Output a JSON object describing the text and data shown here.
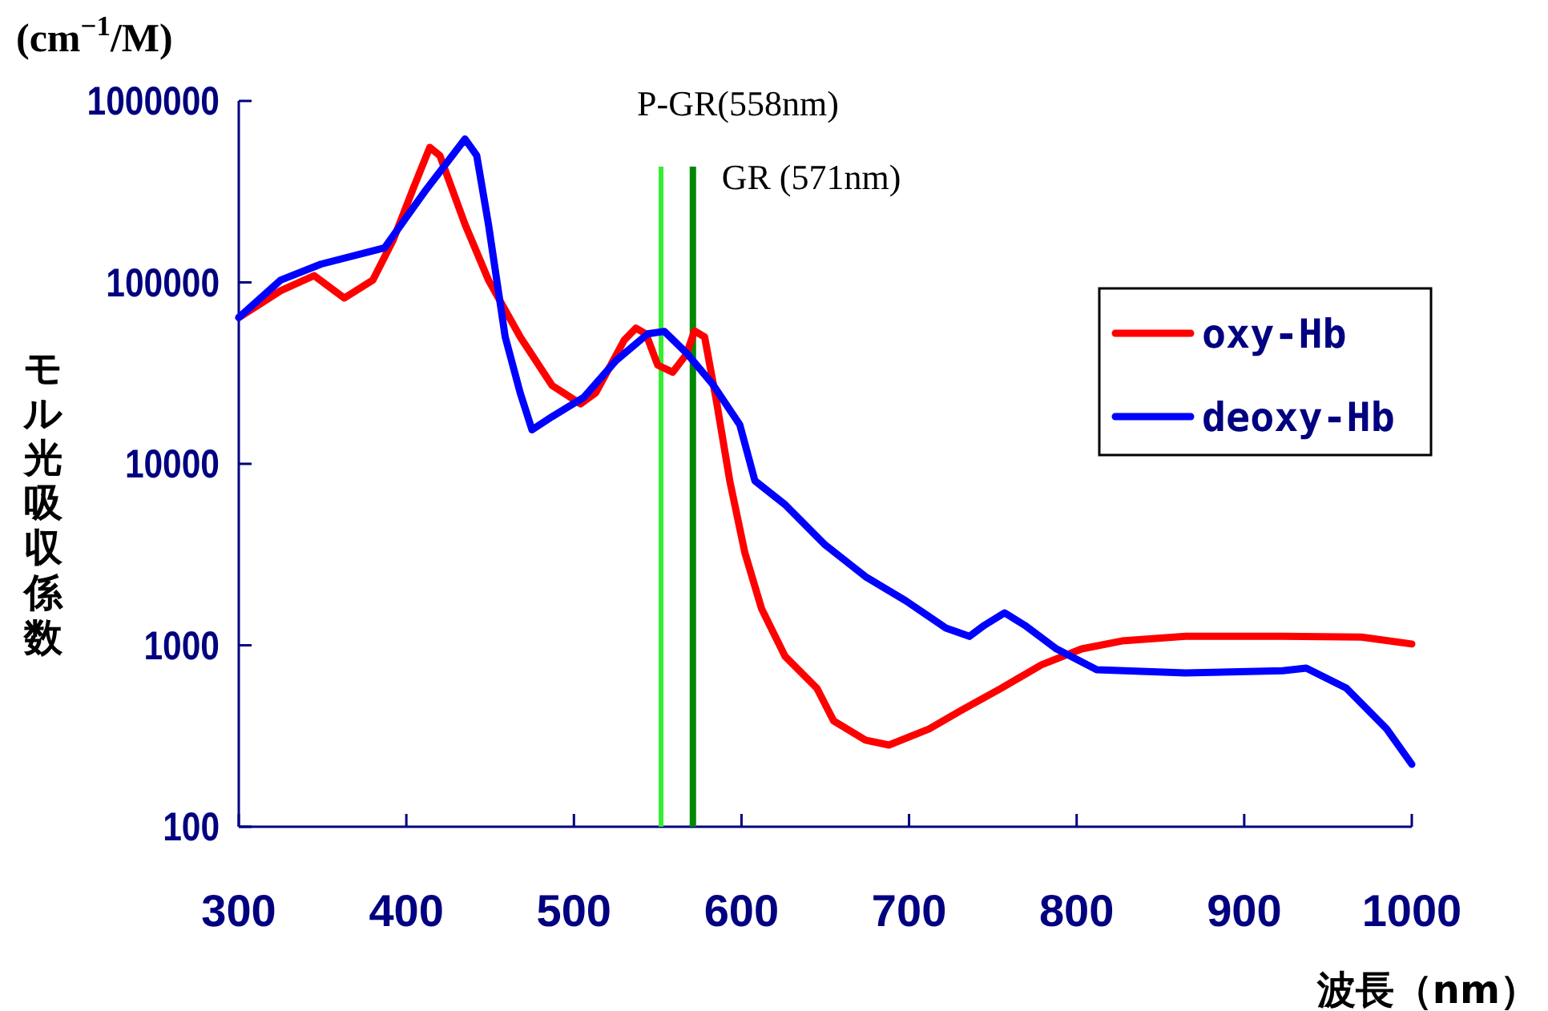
{
  "chart_data": {
    "type": "line",
    "xlabel": "波長（nm）",
    "ylabel": "モル光吸収係数",
    "log": "y",
    "xlim": [
      300,
      1000
    ],
    "ylim": [
      100,
      1000000
    ],
    "xticks": [
      300,
      400,
      500,
      600,
      700,
      800,
      900,
      1000
    ],
    "yticks": [
      100,
      1000,
      10000,
      100000,
      1000000
    ],
    "legend": "top right",
    "annotations": [
      "(cm$^{−1}$/M)"
    ],
    "ref_lines": [
      {
        "axis": "x",
        "value": 552,
        "label": "P-GR(558nm)",
        "color": "#33ee33"
      },
      {
        "axis": "x",
        "value": 571,
        "label": "GR (571nm)",
        "color": "#008800"
      }
    ],
    "series": [
      {
        "name": "oxy-Hb",
        "color": "#ff0000",
        "x": [
          300,
          325,
          345,
          363,
          380,
          392,
          404,
          414,
          420,
          435,
          449,
          468,
          487,
          504,
          513,
          530,
          537,
          543,
          550,
          559,
          567,
          572,
          578,
          585,
          593,
          602,
          612,
          626,
          645,
          655,
          674,
          688,
          712,
          731,
          755,
          779,
          803,
          827,
          865,
          923,
          970,
          1000
        ],
        "values": [
          64000,
          90000,
          109000,
          82000,
          103000,
          170000,
          327000,
          555000,
          500000,
          209000,
          103000,
          50000,
          27000,
          21400,
          24600,
          48000,
          56000,
          52000,
          35000,
          32000,
          40000,
          54000,
          50000,
          22300,
          8070,
          3240,
          1590,
          870,
          580,
          383,
          300,
          282,
          346,
          437,
          580,
          780,
          955,
          1057,
          1120,
          1120,
          1110,
          1017
        ]
      },
      {
        "name": "deoxy-Hb",
        "color": "#0000ff",
        "x": [
          300,
          325,
          349,
          387,
          411,
          435,
          442,
          449,
          459,
          468,
          475,
          487,
          506,
          525,
          544,
          554,
          567,
          583,
          599,
          608,
          626,
          650,
          674,
          698,
          722,
          736,
          745,
          757,
          769,
          788,
          812,
          865,
          923,
          937,
          961,
          985,
          1000
        ],
        "values": [
          64000,
          103000,
          126000,
          155000,
          317000,
          617000,
          500000,
          209000,
          50000,
          24500,
          15400,
          18200,
          23300,
          37000,
          52000,
          53700,
          41000,
          27300,
          16400,
          8070,
          5960,
          3570,
          2390,
          1760,
          1245,
          1120,
          1290,
          1510,
          1290,
          955,
          733,
          705,
          724,
          748,
          580,
          346,
          221
        ]
      }
    ]
  }
}
